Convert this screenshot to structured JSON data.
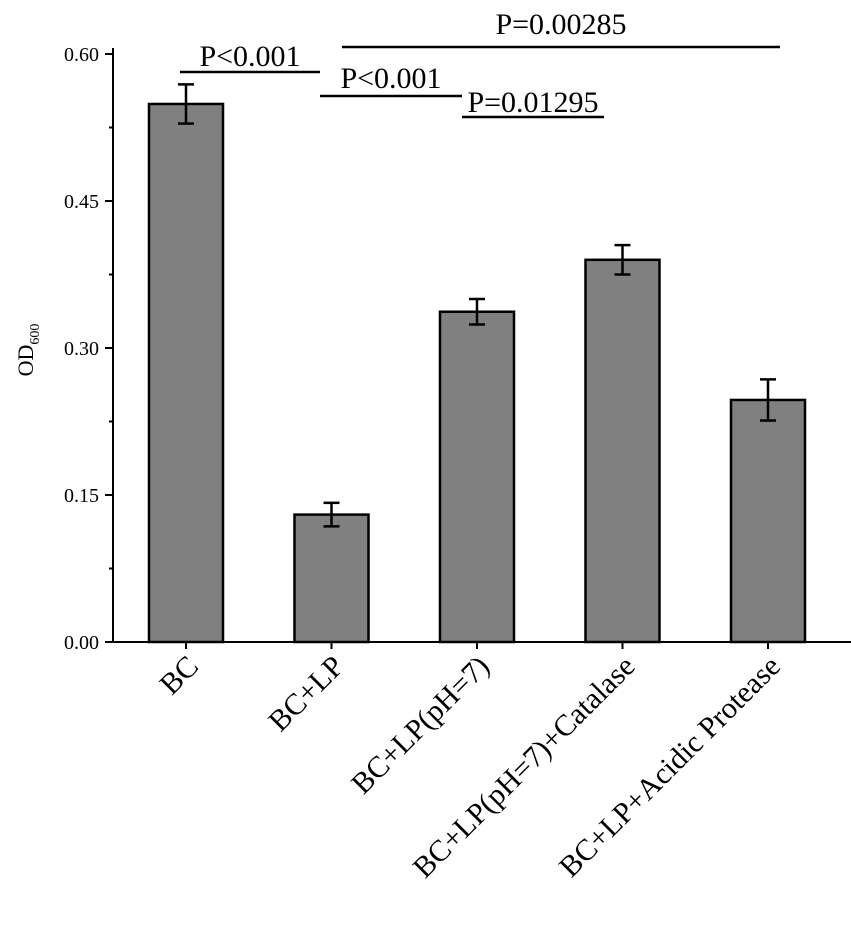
{
  "chart_data": {
    "type": "bar",
    "title": "",
    "xlabel": "",
    "ylabel": {
      "main": "OD",
      "sub": "600"
    },
    "ylim": [
      0,
      0.6
    ],
    "yticks": [
      "0.00",
      "0.15",
      "0.30",
      "0.45",
      "0.60"
    ],
    "ytick_values": [
      0,
      0.15,
      0.3,
      0.45,
      0.6
    ],
    "categories": [
      "BC",
      "BC+LP",
      "BC+LP(pH=7)",
      "BC+LP(pH=7)+Catalase",
      "BC+LP+Acidic Protease"
    ],
    "values": [
      0.549,
      0.13,
      0.337,
      0.39,
      0.247
    ],
    "errors": [
      0.02,
      0.012,
      0.013,
      0.015,
      0.021
    ],
    "bar_color": "#808080",
    "grid": false,
    "annotations": [
      {
        "text": "P<0.001",
        "from": 0,
        "to": 1
      },
      {
        "text": "P<0.001",
        "from": 1,
        "to": 2
      },
      {
        "text": "P=0.01295",
        "from": 2,
        "to": 3
      },
      {
        "text": "P=0.00285",
        "from": 1,
        "to": 4
      }
    ]
  }
}
